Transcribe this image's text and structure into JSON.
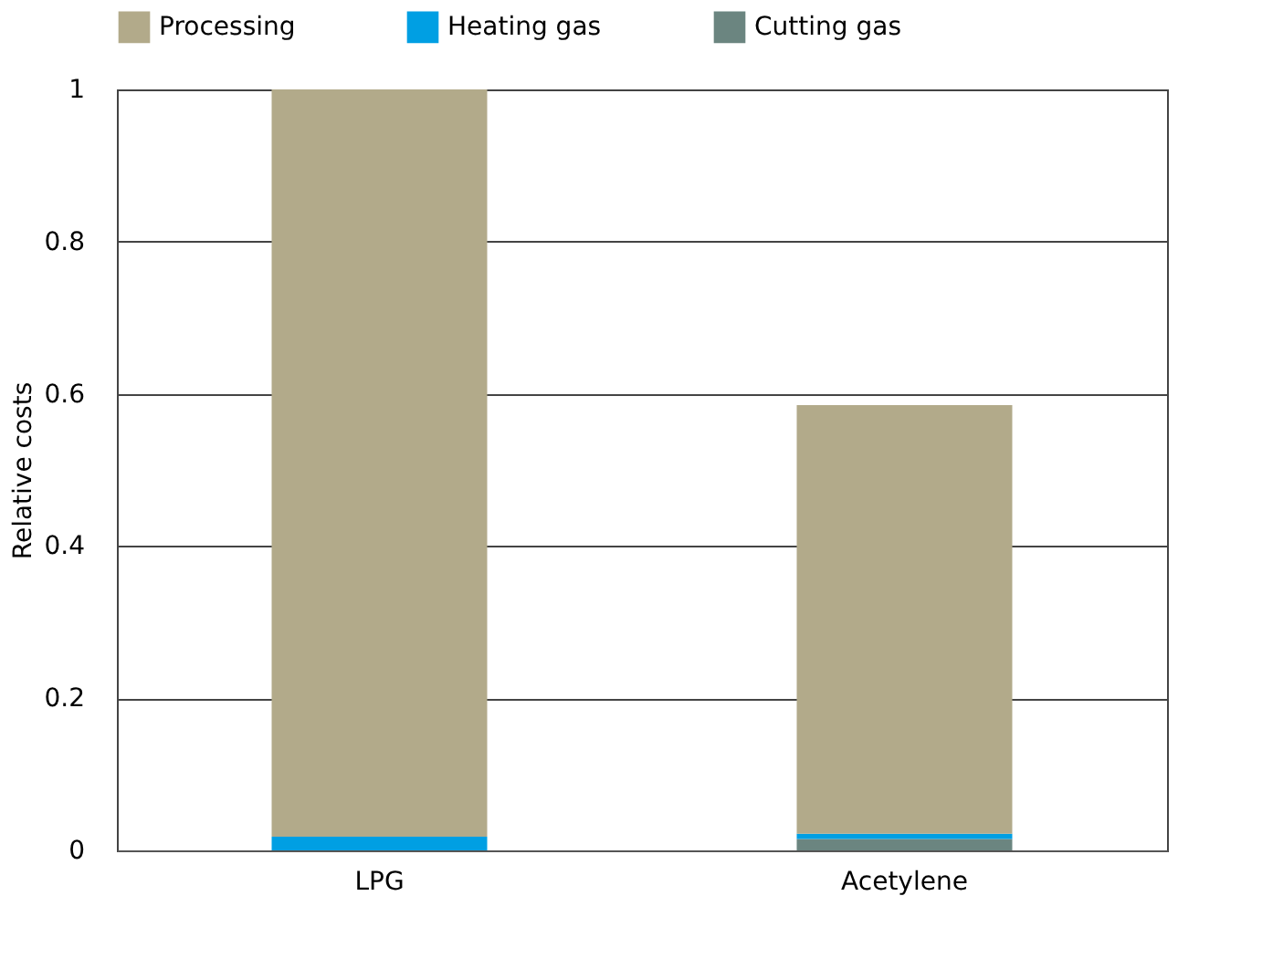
{
  "chart_data": {
    "type": "bar",
    "stacked": true,
    "ylabel": "Relative costs",
    "categories": [
      "LPG",
      "Acetylene"
    ],
    "series": [
      {
        "name": "Cutting gas",
        "color": "#6b8580",
        "values": [
          0,
          0.015
        ]
      },
      {
        "name": "Heating gas",
        "color": "#009fe3",
        "values": [
          0.018,
          0.007
        ]
      },
      {
        "name": "Processing",
        "color": "#b2aa8a",
        "values": [
          0.982,
          0.563
        ]
      }
    ],
    "ylim": [
      0,
      1
    ],
    "yticks": [
      0,
      0.2,
      0.4,
      0.6,
      0.8,
      1
    ],
    "grid": "y",
    "legend": "top left"
  }
}
